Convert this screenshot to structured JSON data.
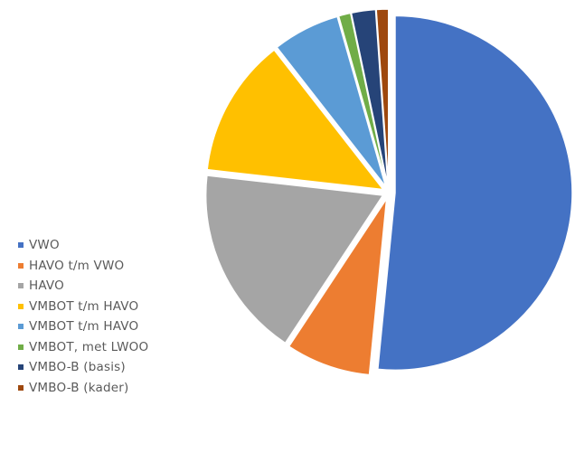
{
  "chart_data": {
    "type": "pie",
    "categories": [
      "VWO",
      "HAVO t/m VWO",
      "HAVO",
      "VMBOT t/m HAVO",
      "VMBOT t/m HAVO",
      "VMBOT, met LWOO",
      "VMBO-B (basis)",
      "VMBO-B (kader)"
    ],
    "values": [
      51.3,
      7.7,
      17.4,
      12.6,
      6.1,
      1.1,
      2.2,
      1.1
    ],
    "colors": [
      "#4472c4",
      "#ed7d31",
      "#a5a5a5",
      "#ffc000",
      "#5b9bd5",
      "#70ad47",
      "#264478",
      "#9e480e"
    ],
    "exploded": true,
    "legend_position": "left-bottom",
    "title": ""
  }
}
